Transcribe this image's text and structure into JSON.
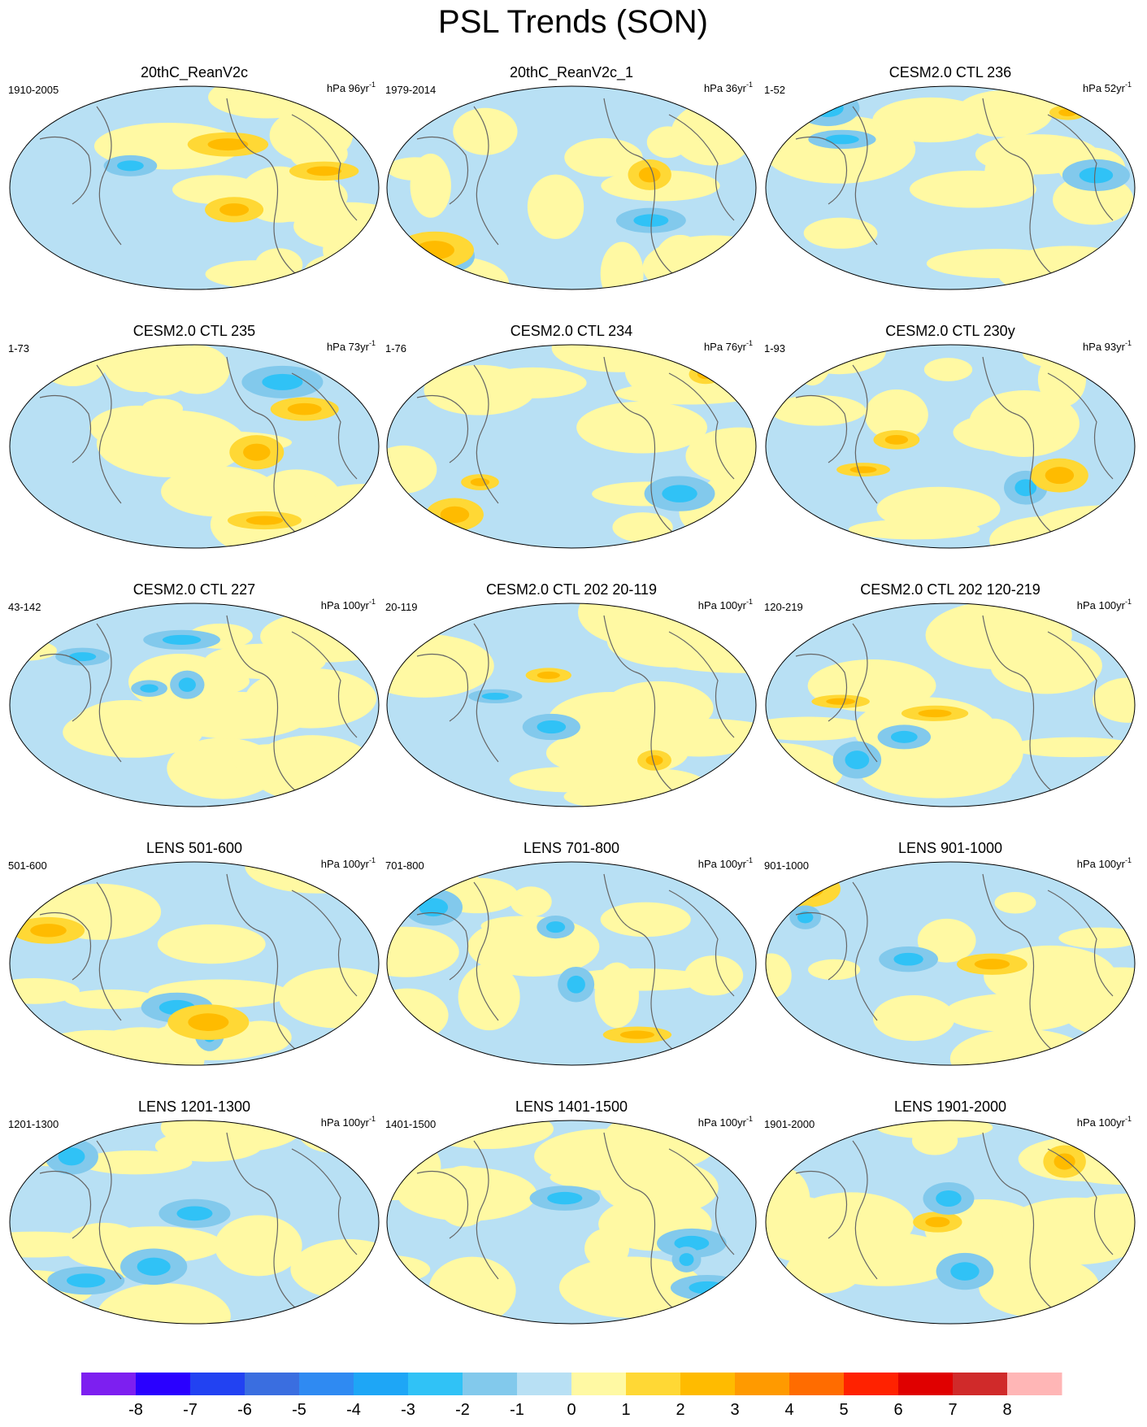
{
  "title": "PSL Trends (SON)",
  "panels": [
    {
      "title": "20thC_ReanV2c",
      "period": "1910-2005",
      "units": "hPa 96yr",
      "units_sup": "-1"
    },
    {
      "title": "20thC_ReanV2c_1",
      "period": "1979-2014",
      "units": "hPa 36yr",
      "units_sup": "-1"
    },
    {
      "title": "CESM2.0 CTL 236",
      "period": "1-52",
      "units": "hPa 52yr",
      "units_sup": "-1"
    },
    {
      "title": "CESM2.0 CTL 235",
      "period": "1-73",
      "units": "hPa 73yr",
      "units_sup": "-1"
    },
    {
      "title": "CESM2.0 CTL 234",
      "period": "1-76",
      "units": "hPa 76yr",
      "units_sup": "-1"
    },
    {
      "title": "CESM2.0 CTL 230y",
      "period": "1-93",
      "units": "hPa 93yr",
      "units_sup": "-1"
    },
    {
      "title": "CESM2.0 CTL 227",
      "period": "43-142",
      "units": "hPa 100yr",
      "units_sup": "-1"
    },
    {
      "title": "CESM2.0 CTL 202 20-119",
      "period": "20-119",
      "units": "hPa 100yr",
      "units_sup": "-1"
    },
    {
      "title": "CESM2.0 CTL 202 120-219",
      "period": "120-219",
      "units": "hPa 100yr",
      "units_sup": "-1"
    },
    {
      "title": "LENS 501-600",
      "period": "501-600",
      "units": "hPa 100yr",
      "units_sup": "-1"
    },
    {
      "title": "LENS 701-800",
      "period": "701-800",
      "units": "hPa 100yr",
      "units_sup": "-1"
    },
    {
      "title": "LENS 901-1000",
      "period": "901-1000",
      "units": "hPa 100yr",
      "units_sup": "-1"
    },
    {
      "title": "LENS 1201-1300",
      "period": "1201-1300",
      "units": "hPa 100yr",
      "units_sup": "-1"
    },
    {
      "title": "LENS 1401-1500",
      "period": "1401-1500",
      "units": "hPa 100yr",
      "units_sup": "-1"
    },
    {
      "title": "LENS 1901-2000",
      "period": "1901-2000",
      "units": "hPa 100yr",
      "units_sup": "-1"
    }
  ],
  "colorbar": {
    "colors": [
      "#7d1ff0",
      "#2a00ff",
      "#2242f2",
      "#3a6ee0",
      "#2f8af2",
      "#1ea6f6",
      "#30c2f6",
      "#82c9ec",
      "#b8e0f4",
      "#fff9a3",
      "#ffd835",
      "#ffbb00",
      "#ff9a00",
      "#ff6c00",
      "#ff2200",
      "#e00000",
      "#d02a2a",
      "#ffb6b6"
    ],
    "labels": [
      -8,
      -7,
      -6,
      -5,
      -4,
      -3,
      -2,
      -1,
      0,
      1,
      2,
      3,
      4,
      5,
      6,
      7,
      8
    ]
  }
}
